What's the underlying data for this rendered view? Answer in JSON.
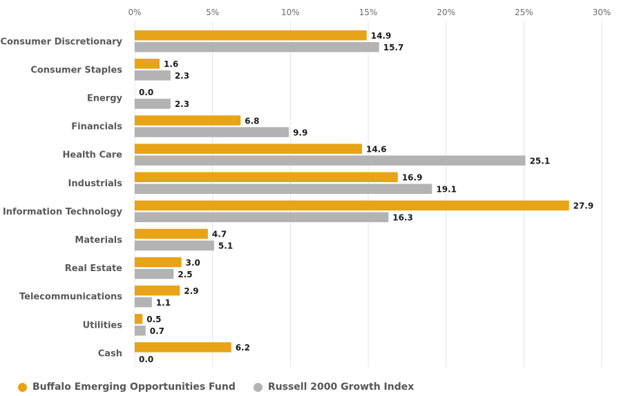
{
  "chart_data": {
    "type": "bar",
    "orientation": "horizontal",
    "categories": [
      "Consumer Discretionary",
      "Consumer Staples",
      "Energy",
      "Financials",
      "Health Care",
      "Industrials",
      "Information Technology",
      "Materials",
      "Real Estate",
      "Telecommunications",
      "Utilities",
      "Cash"
    ],
    "series": [
      {
        "name": "Buffalo Emerging Opportunities Fund",
        "color": "#e8a317",
        "values": [
          14.9,
          1.6,
          0.0,
          6.8,
          14.6,
          16.9,
          27.9,
          4.7,
          3.0,
          2.9,
          0.5,
          6.2
        ]
      },
      {
        "name": "Russell 2000 Growth Index",
        "color": "#b3b3b3",
        "values": [
          15.7,
          2.3,
          2.3,
          9.9,
          25.1,
          19.1,
          16.3,
          5.1,
          2.5,
          1.1,
          0.7,
          0.0
        ]
      }
    ],
    "xlim": [
      0,
      30
    ],
    "xticks": [
      "0%",
      "5%",
      "10%",
      "15%",
      "20%",
      "25%",
      "30%"
    ],
    "xaxis_position": "top",
    "grid": true,
    "legend_position": "bottom-left"
  }
}
